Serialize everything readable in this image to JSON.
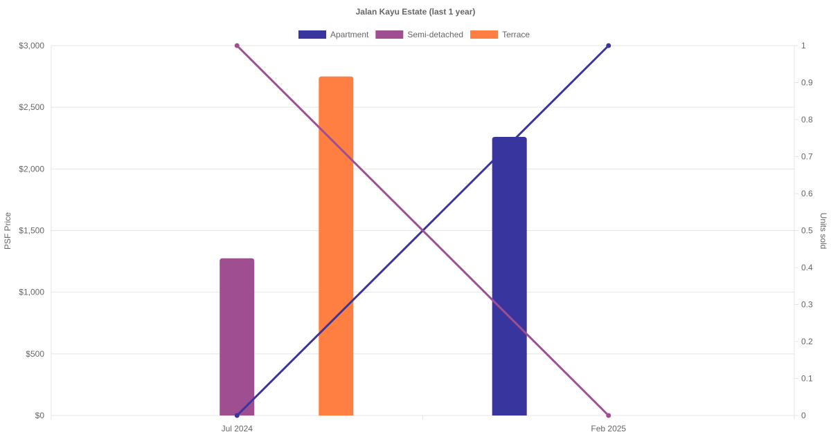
{
  "chart_data": {
    "type": "bar",
    "title": "Jalan Kayu Estate (last 1 year)",
    "categories": [
      "Jul 2024",
      "Feb 2025"
    ],
    "ylabel": "PSF Price",
    "y2label": "Units sold",
    "ylim": [
      0,
      3000
    ],
    "y2lim": [
      0,
      1
    ],
    "yticks": [
      "$0",
      "$500",
      "$1,000",
      "$1,500",
      "$2,000",
      "$2,500",
      "$3,000"
    ],
    "y2ticks": [
      "0",
      "0.1",
      "0.2",
      "0.3",
      "0.4",
      "0.5",
      "0.6",
      "0.7",
      "0.8",
      "0.9",
      "1"
    ],
    "grid": true,
    "legend": "top",
    "series": [
      {
        "name": "Apartment",
        "color": "#39359e",
        "bar_values": [
          null,
          2260
        ],
        "units_sold": [
          0,
          1
        ]
      },
      {
        "name": "Semi-detached",
        "color": "#9f4f91",
        "bar_values": [
          1275,
          null
        ],
        "units_sold": [
          1,
          0
        ]
      },
      {
        "name": "Terrace",
        "color": "#ff7f42",
        "bar_values": [
          2750,
          null
        ],
        "units_sold": null
      }
    ]
  }
}
